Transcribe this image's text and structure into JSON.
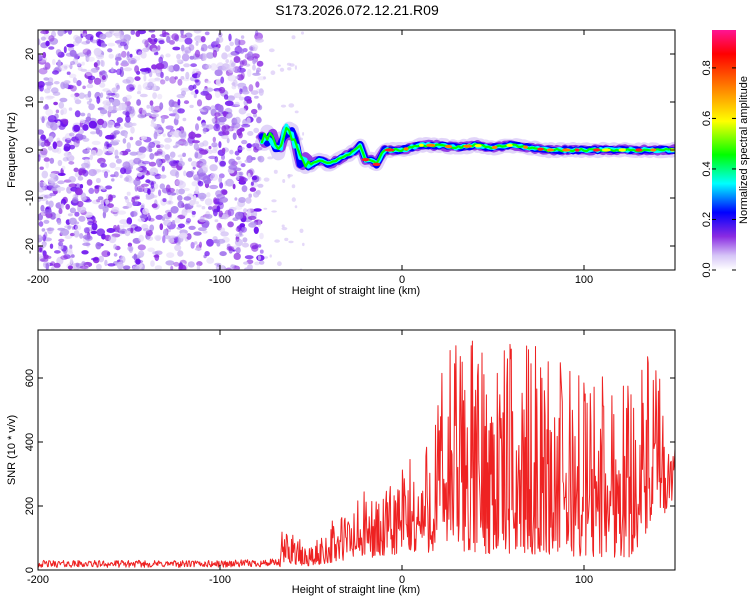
{
  "title": "S173.2026.072.12.21.R09",
  "chart_data": [
    {
      "type": "heatmap",
      "name": "spectrogram",
      "xlabel": "Height of straight line (km)",
      "ylabel": "Frequency (Hz)",
      "xlim": [
        -200,
        150
      ],
      "ylim": [
        -25,
        25
      ],
      "xticks": [
        -200,
        -100,
        0,
        100
      ],
      "yticks": [
        -20,
        -10,
        0,
        10,
        20
      ],
      "xtick_labels": [
        "-200",
        "-100",
        "0",
        "100"
      ],
      "ytick_labels": [
        "-20",
        "-10",
        "0",
        "10",
        "20"
      ],
      "noise_region_x": [
        -200,
        -77
      ],
      "trace": [
        {
          "x": -77,
          "y": 2
        },
        {
          "x": -72,
          "y": 3
        },
        {
          "x": -68,
          "y": 0
        },
        {
          "x": -64,
          "y": 4
        },
        {
          "x": -60,
          "y": 3
        },
        {
          "x": -56,
          "y": -2
        },
        {
          "x": -50,
          "y": -3
        },
        {
          "x": -45,
          "y": -2
        },
        {
          "x": -40,
          "y": -3
        },
        {
          "x": -35,
          "y": -2
        },
        {
          "x": -30,
          "y": -1
        },
        {
          "x": -25,
          "y": 0
        },
        {
          "x": -23,
          "y": 1
        },
        {
          "x": -20,
          "y": -2
        },
        {
          "x": -17,
          "y": -2
        },
        {
          "x": -14,
          "y": -3
        },
        {
          "x": -10,
          "y": 0
        },
        {
          "x": 0,
          "y": 0
        },
        {
          "x": 10,
          "y": 1
        },
        {
          "x": 20,
          "y": 1
        },
        {
          "x": 30,
          "y": 0.5
        },
        {
          "x": 40,
          "y": 1
        },
        {
          "x": 50,
          "y": 0.5
        },
        {
          "x": 60,
          "y": 1
        },
        {
          "x": 70,
          "y": 0.5
        },
        {
          "x": 80,
          "y": 0
        },
        {
          "x": 90,
          "y": 0
        },
        {
          "x": 100,
          "y": 0
        },
        {
          "x": 110,
          "y": 0
        },
        {
          "x": 120,
          "y": 0
        },
        {
          "x": 130,
          "y": 0
        },
        {
          "x": 140,
          "y": 0
        },
        {
          "x": 150,
          "y": 0
        }
      ],
      "colorbar": {
        "label": "Normalized spectral amplitude",
        "range": [
          0.0,
          0.95
        ],
        "ticks": [
          0.0,
          0.2,
          0.4,
          0.6,
          0.8
        ],
        "tick_labels": [
          "0.0",
          "0.2",
          "0.4",
          "0.6",
          "0.8"
        ],
        "colors": [
          "#ffffff",
          "#b99cf0",
          "#8a2be2",
          "#0000ff",
          "#00ffff",
          "#00ff00",
          "#ffff00",
          "#ff8000",
          "#ff0000",
          "#ff1493"
        ]
      }
    },
    {
      "type": "line",
      "name": "snr",
      "xlabel": "Height of straight line (km)",
      "ylabel": "SNR (10 * v/v)",
      "xlim": [
        -200,
        150
      ],
      "ylim": [
        0,
        750
      ],
      "xticks": [
        -200,
        -100,
        0,
        100
      ],
      "yticks": [
        0,
        200,
        400,
        600
      ],
      "xtick_labels": [
        "-200",
        "-100",
        "0",
        "100"
      ],
      "ytick_labels": [
        "0",
        "200",
        "400",
        "600"
      ],
      "line_color": "#ee2222",
      "envelope": [
        {
          "x": -200,
          "min": 8,
          "max": 30
        },
        {
          "x": -150,
          "min": 8,
          "max": 30
        },
        {
          "x": -100,
          "min": 8,
          "max": 30
        },
        {
          "x": -67,
          "min": 10,
          "max": 35
        },
        {
          "x": -66,
          "min": 20,
          "max": 120
        },
        {
          "x": -60,
          "min": 20,
          "max": 150
        },
        {
          "x": -55,
          "min": 10,
          "max": 80
        },
        {
          "x": -48,
          "min": 15,
          "max": 80
        },
        {
          "x": -42,
          "min": 20,
          "max": 140
        },
        {
          "x": -30,
          "min": 30,
          "max": 200
        },
        {
          "x": -20,
          "min": 40,
          "max": 250
        },
        {
          "x": -10,
          "min": 40,
          "max": 230
        },
        {
          "x": 0,
          "min": 50,
          "max": 350
        },
        {
          "x": 10,
          "min": 50,
          "max": 350
        },
        {
          "x": 20,
          "min": 60,
          "max": 580
        },
        {
          "x": 25,
          "min": 60,
          "max": 750
        },
        {
          "x": 50,
          "min": 50,
          "max": 720
        },
        {
          "x": 75,
          "min": 50,
          "max": 700
        },
        {
          "x": 100,
          "min": 40,
          "max": 640
        },
        {
          "x": 125,
          "min": 40,
          "max": 640
        },
        {
          "x": 140,
          "min": 150,
          "max": 690
        },
        {
          "x": 145,
          "min": 180,
          "max": 400
        },
        {
          "x": 150,
          "min": 230,
          "max": 380
        }
      ]
    }
  ]
}
